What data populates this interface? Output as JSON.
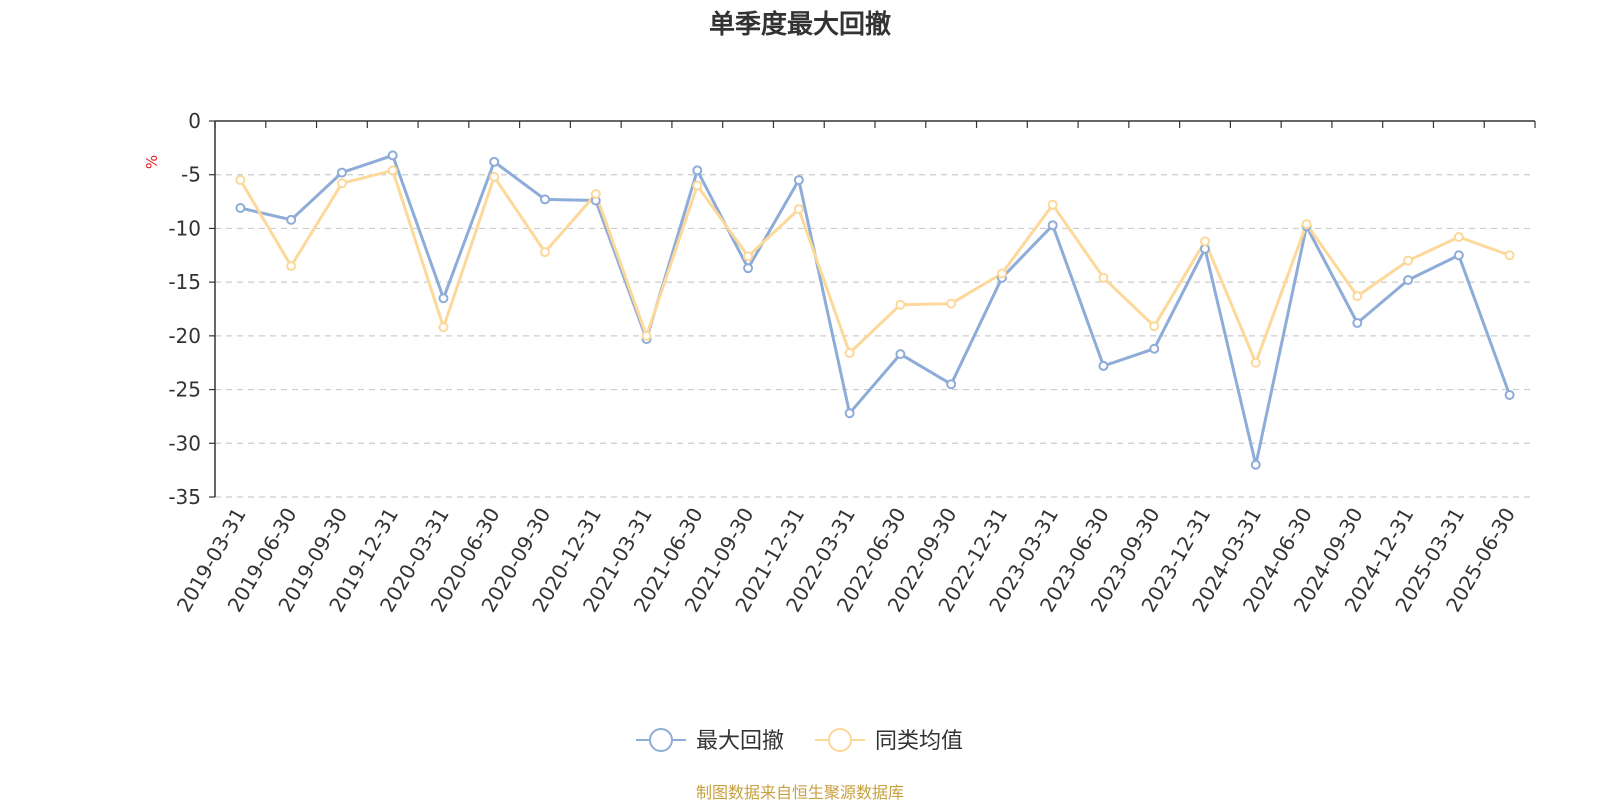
{
  "chart_data": {
    "type": "line",
    "title": "单季度最大回撤",
    "ylabel": "%",
    "ylim": [
      -35,
      0
    ],
    "yticks": [
      0,
      -5,
      -10,
      -15,
      -20,
      -25,
      -30,
      -35
    ],
    "grid": true,
    "legend_position": "bottom",
    "categories": [
      "2019-03-31",
      "2019-06-30",
      "2019-09-30",
      "2019-12-31",
      "2020-03-31",
      "2020-06-30",
      "2020-09-30",
      "2020-12-31",
      "2021-03-31",
      "2021-06-30",
      "2021-09-30",
      "2021-12-31",
      "2022-03-31",
      "2022-06-30",
      "2022-09-30",
      "2022-12-31",
      "2023-03-31",
      "2023-06-30",
      "2023-09-30",
      "2023-12-31",
      "2024-03-31",
      "2024-06-30",
      "2024-09-30",
      "2024-12-31",
      "2025-03-31",
      "2025-06-30"
    ],
    "series": [
      {
        "name": "最大回撤",
        "color": "#8eacd8",
        "values": [
          -8.1,
          -9.2,
          -4.8,
          -3.2,
          -16.5,
          -3.8,
          -7.3,
          -7.4,
          -20.3,
          -4.6,
          -13.7,
          -5.5,
          -27.2,
          -21.7,
          -24.5,
          -14.6,
          -9.7,
          -22.8,
          -21.2,
          -11.9,
          -32.0,
          -9.8,
          -18.8,
          -14.8,
          -12.5,
          -25.5
        ]
      },
      {
        "name": "同类均值",
        "color": "#fcd99a",
        "values": [
          -5.5,
          -13.5,
          -5.8,
          -4.6,
          -19.2,
          -5.2,
          -12.2,
          -6.8,
          -20.0,
          -6.0,
          -12.6,
          -8.2,
          -21.6,
          -17.1,
          -17.0,
          -14.2,
          -7.8,
          -14.6,
          -19.1,
          -11.2,
          -22.5,
          -9.6,
          -16.3,
          -13.0,
          -10.8,
          -12.5
        ]
      }
    ],
    "source_note": "制图数据来自恒生聚源数据库",
    "source_color": "#c8a040",
    "ylabel_color": "#e02020"
  }
}
